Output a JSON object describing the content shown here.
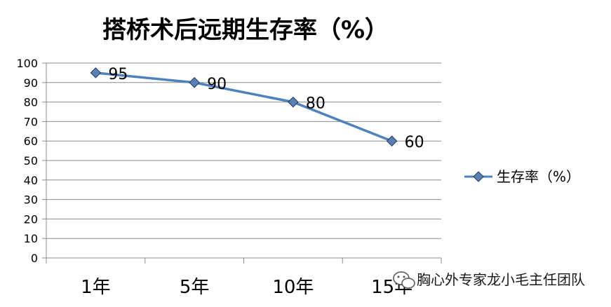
{
  "chart_data": {
    "type": "line",
    "title": "搭桥术后远期生存率（%）",
    "categories": [
      "1年",
      "5年",
      "10年",
      "15年"
    ],
    "series": [
      {
        "name": "生存率（%）",
        "values": [
          95,
          90,
          80,
          60
        ],
        "color": "#4F81BD",
        "marker_color": "#5B7FB0"
      }
    ],
    "data_labels": [
      "95",
      "90",
      "80",
      "60"
    ],
    "ylim": [
      0,
      100
    ],
    "ytick_step": 10,
    "grid": true,
    "legend": "right",
    "xlabel": "",
    "ylabel": ""
  },
  "watermark": {
    "text": "胸心外专家龙小毛主任团队",
    "icon": "wechat-icon"
  },
  "colors": {
    "grid": "#8C8C8C",
    "axis": "#8C8C8C",
    "line": "#4F81BD",
    "marker": "#5B7FB0"
  }
}
